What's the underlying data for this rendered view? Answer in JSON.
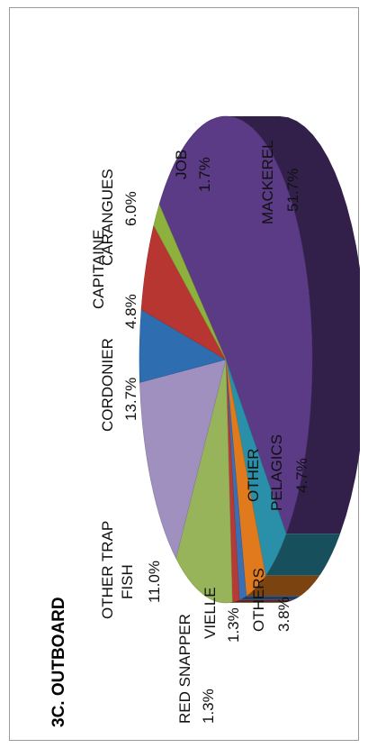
{
  "chart_data": {
    "type": "pie",
    "title": "3C. OUTBOARD",
    "slices": [
      {
        "label": "MACKEREL",
        "value": 51.7,
        "text": "51.7%",
        "color": "#5b3a86"
      },
      {
        "label": "OTHER PELAGICS",
        "value": 4.7,
        "text": "4.7%",
        "color": "#2a8fa8"
      },
      {
        "label": "OTHERS",
        "value": 3.8,
        "text": "3.8%",
        "color": "#e07a1c"
      },
      {
        "label": "VIELLE",
        "value": 1.3,
        "text": "1.3%",
        "color": "#3c6fb2"
      },
      {
        "label": "RED SNAPPER",
        "value": 1.3,
        "text": "1.3%",
        "color": "#b63b36"
      },
      {
        "label": "OTHER TRAP FISH",
        "value": 11.0,
        "text": "11.0%",
        "color": "#97b45a"
      },
      {
        "label": "CORDONIER",
        "value": 13.7,
        "text": "13.7%",
        "color": "#9f90bf"
      },
      {
        "label": "CAPITAINE",
        "value": 4.8,
        "text": "4.8%",
        "color": "#2e6db0"
      },
      {
        "label": "CARANGUES",
        "value": 6.0,
        "text": "6.0%",
        "color": "#b83632"
      },
      {
        "label": "JOB",
        "value": 1.7,
        "text": "1.7%",
        "color": "#8eb13e"
      }
    ],
    "legend": "none"
  }
}
